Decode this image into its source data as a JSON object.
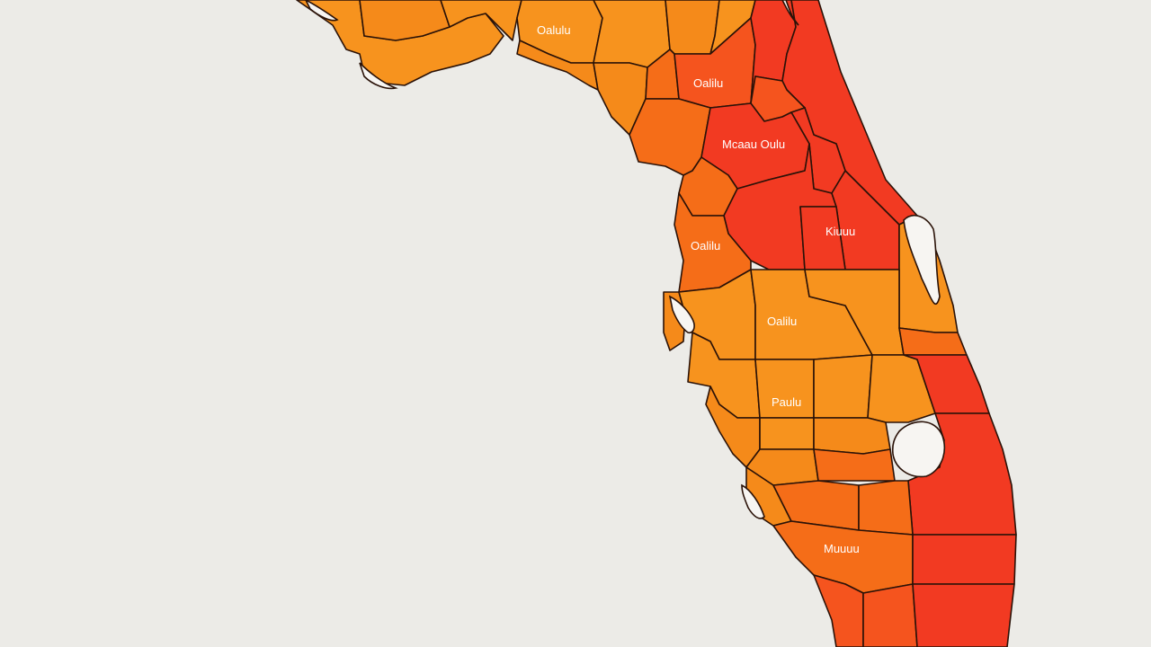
{
  "map": {
    "background": "#ecebe7",
    "colors": {
      "light_orange": "#f7931e",
      "orange": "#f58a1a",
      "dark_orange": "#f56d18",
      "red_orange": "#f5541e",
      "red": "#f23a22",
      "outline": "#2a1208",
      "water": "#f7f5f2"
    },
    "labels": [
      "Oalulu",
      "Oalilu",
      "Mcaau Oulu",
      "Oalilu",
      "Kiuuu",
      "Oalilu",
      "Paulu",
      "Muuuu"
    ]
  }
}
